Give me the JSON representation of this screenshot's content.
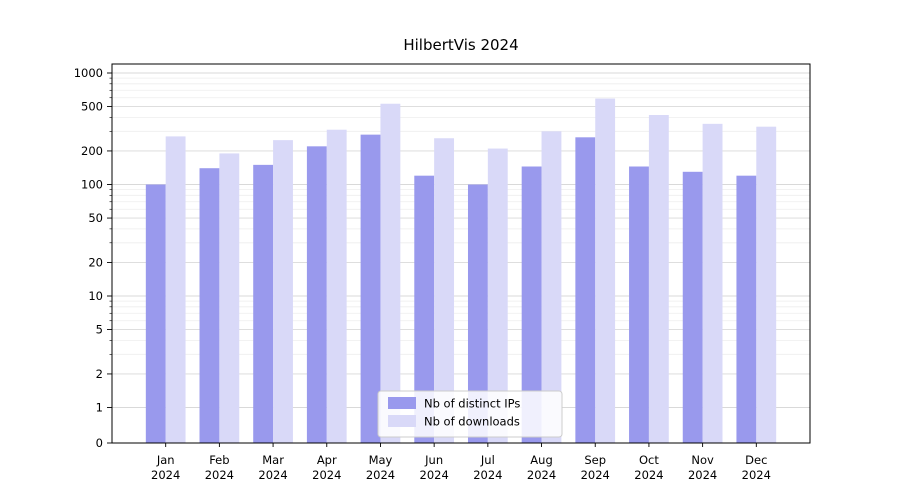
{
  "chart_data": {
    "type": "bar",
    "title": "HilbertVis 2024",
    "xlabel": "",
    "ylabel": "",
    "y_scale": "symlog (logarithmic above 1)",
    "ylim": [
      0,
      1000
    ],
    "y_ticks": [
      0,
      1,
      2,
      5,
      10,
      20,
      50,
      100,
      200,
      500,
      1000
    ],
    "grid": true,
    "legend_position": "lower center",
    "year_label": "2024",
    "categories": [
      "Jan",
      "Feb",
      "Mar",
      "Apr",
      "May",
      "Jun",
      "Jul",
      "Aug",
      "Sep",
      "Oct",
      "Nov",
      "Dec"
    ],
    "series": [
      {
        "name": "Nb of distinct IPs",
        "color": "#9999ed",
        "values": [
          100,
          140,
          150,
          220,
          280,
          120,
          100,
          145,
          265,
          145,
          130,
          120
        ]
      },
      {
        "name": "Nb of downloads",
        "color": "#d9d9f8",
        "values": [
          270,
          190,
          250,
          310,
          530,
          260,
          210,
          300,
          590,
          420,
          350,
          330
        ]
      }
    ]
  }
}
